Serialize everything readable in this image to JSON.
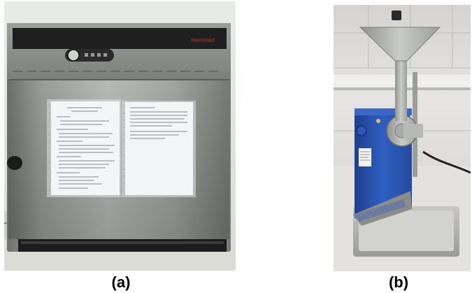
{
  "figure": {
    "panel_a": {
      "caption": "(a)",
      "brand_text": "memmert"
    },
    "panel_b": {
      "caption": "(b)"
    }
  }
}
